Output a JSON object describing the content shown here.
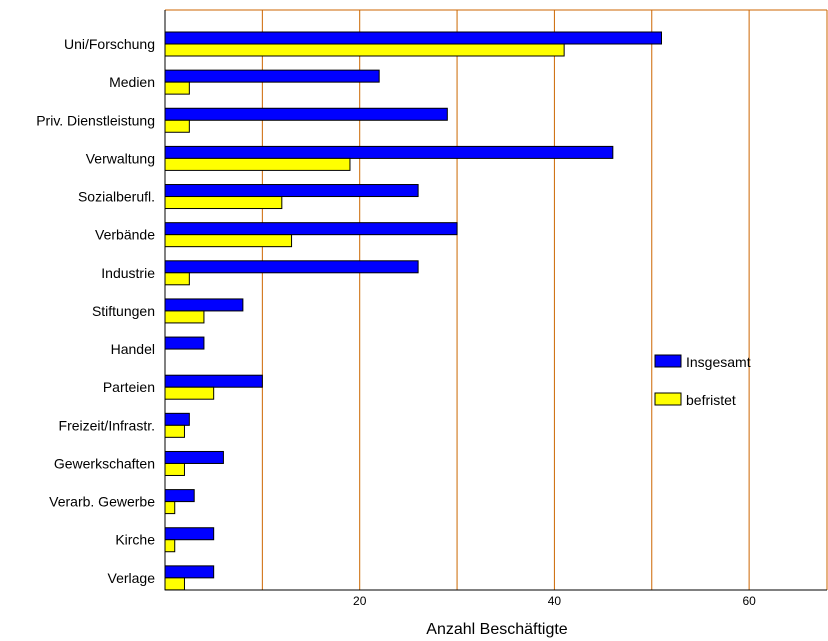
{
  "chart_data": {
    "type": "bar",
    "orientation": "horizontal",
    "categories": [
      "Uni/Forschung",
      "Medien",
      "Priv. Dienstleistung",
      "Verwaltung",
      "Sozialberufl.",
      "Verbände",
      "Industrie",
      "Stiftungen",
      "Handel",
      "Parteien",
      "Freizeit/Infrastr.",
      "Gewerkschaften",
      "Verarb. Gewerbe",
      "Kirche",
      "Verlage"
    ],
    "series": [
      {
        "name": "Insgesamt",
        "color": "#0000ff",
        "values": [
          51,
          22,
          29,
          46,
          26,
          30,
          26,
          8,
          4,
          10,
          2.5,
          6,
          3,
          5,
          5
        ]
      },
      {
        "name": "befristet",
        "color": "#ffff00",
        "values": [
          41,
          2.5,
          2.5,
          19,
          12,
          13,
          2.5,
          4,
          0,
          5,
          2,
          2,
          1,
          1,
          2
        ]
      }
    ],
    "xlabel": "Anzahl Beschäftigte",
    "ylabel": "",
    "xlim": [
      0,
      68
    ],
    "xticks": [
      20,
      40,
      60
    ],
    "gridlines": [
      10,
      20,
      30,
      40,
      50,
      60
    ],
    "grid_color": "#cc6600",
    "legend_position": "right"
  }
}
